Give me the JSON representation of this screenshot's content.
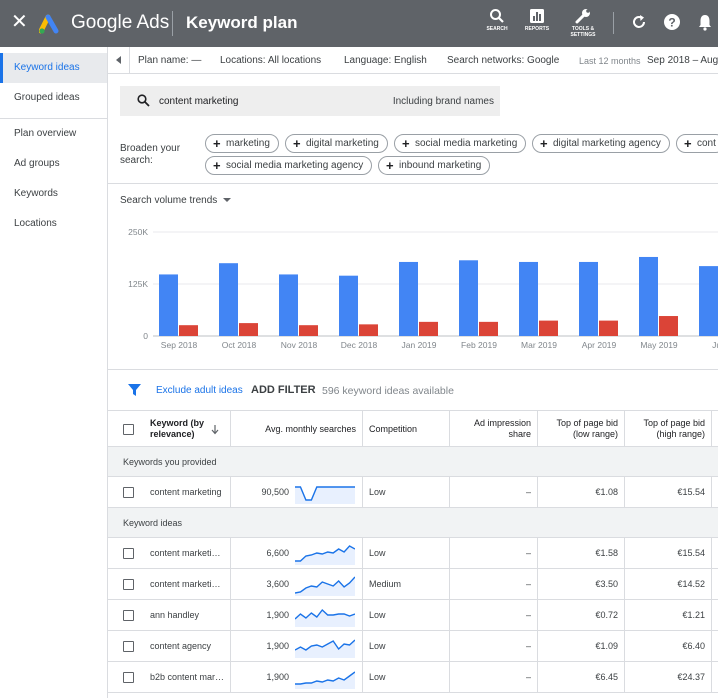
{
  "app": {
    "brand": "Google Ads",
    "page_title": "Keyword plan"
  },
  "header_tools": [
    {
      "label": "SEARCH",
      "icon": "search-icon"
    },
    {
      "label": "REPORTS",
      "icon": "reports-icon"
    },
    {
      "label": "TOOLS & SETTINGS",
      "icon": "wrench-icon"
    }
  ],
  "sidebar": {
    "items": [
      {
        "label": "Keyword ideas",
        "active": true
      },
      {
        "label": "Grouped ideas",
        "active": false
      },
      {
        "label": "Plan overview",
        "active": false
      },
      {
        "label": "Ad groups",
        "active": false
      },
      {
        "label": "Keywords",
        "active": false
      },
      {
        "label": "Locations",
        "active": false
      }
    ]
  },
  "planbar": {
    "plan_name": "Plan name: —",
    "locations": "Locations: All locations",
    "language": "Language: English",
    "networks": "Search networks: Google",
    "range_label": "Last 12 months",
    "range_value": "Sep 2018 – Aug"
  },
  "search": {
    "query": "content marketing",
    "brand_toggle": "Including brand names"
  },
  "broaden": {
    "label": "Broaden your search:",
    "chips_row1": [
      "marketing",
      "digital marketing",
      "social media marketing",
      "digital marketing agency",
      "cont"
    ],
    "chips_row2": [
      "social media marketing agency",
      "inbound marketing"
    ]
  },
  "chart_select": "Search volume trends",
  "chart_data": {
    "type": "bar",
    "categories": [
      "Sep 2018",
      "Oct 2018",
      "Nov 2018",
      "Dec 2018",
      "Jan 2019",
      "Feb 2019",
      "Mar 2019",
      "Apr 2019",
      "May 2019",
      "Jun"
    ],
    "series": [
      {
        "values": [
          148000,
          175000,
          148000,
          145000,
          178000,
          182000,
          178000,
          178000,
          190000,
          168000
        ],
        "color": "#4285f4"
      },
      {
        "values": [
          26000,
          31000,
          26000,
          28000,
          34000,
          34000,
          37000,
          37000,
          48000,
          0
        ],
        "color": "#db4437"
      }
    ],
    "yticks": [
      "0",
      "125K",
      "250K"
    ],
    "ylim": [
      0,
      250000
    ],
    "grid": true
  },
  "filterbar": {
    "exclude": "Exclude adult ideas",
    "add_filter": "ADD FILTER",
    "count": "596 keyword ideas available"
  },
  "table": {
    "headers": {
      "keyword": "Keyword (by relevance)",
      "searches": "Avg. monthly searches",
      "competition": "Competition",
      "impression": "Ad impression share",
      "bid_low": "Top of page bid (low range)",
      "bid_high": "Top of page bid (high range)"
    },
    "section_provided": "Keywords you provided",
    "section_ideas": "Keyword ideas",
    "provided": [
      {
        "keyword": "content marketing",
        "searches": "90,500",
        "competition": "Low",
        "impression": "–",
        "bid_low": "€1.08",
        "bid_high": "€15.54",
        "trend": [
          0.75,
          0.75,
          0.1,
          0.1,
          0.75,
          0.75,
          0.75,
          0.75,
          0.75,
          0.75,
          0.75,
          0.75
        ]
      }
    ],
    "ideas": [
      {
        "keyword": "content marketi…",
        "searches": "6,600",
        "competition": "Low",
        "impression": "–",
        "bid_low": "€1.58",
        "bid_high": "€15.54",
        "trend": [
          0.1,
          0.1,
          0.35,
          0.4,
          0.5,
          0.45,
          0.55,
          0.5,
          0.7,
          0.55,
          0.85,
          0.7
        ]
      },
      {
        "keyword": "content marketi…",
        "searches": "3,600",
        "competition": "Medium",
        "impression": "–",
        "bid_low": "€3.50",
        "bid_high": "€14.52",
        "trend": [
          0.05,
          0.1,
          0.3,
          0.4,
          0.35,
          0.6,
          0.5,
          0.4,
          0.65,
          0.35,
          0.55,
          0.85
        ]
      },
      {
        "keyword": "ann handley",
        "searches": "1,900",
        "competition": "Low",
        "impression": "–",
        "bid_low": "€0.72",
        "bid_high": "€1.21",
        "trend": [
          0.3,
          0.55,
          0.35,
          0.6,
          0.4,
          0.75,
          0.5,
          0.5,
          0.55,
          0.55,
          0.45,
          0.55
        ]
      },
      {
        "keyword": "content agency",
        "searches": "1,900",
        "competition": "Low",
        "impression": "–",
        "bid_low": "€1.09",
        "bid_high": "€6.40",
        "trend": [
          0.3,
          0.45,
          0.3,
          0.5,
          0.55,
          0.45,
          0.6,
          0.75,
          0.35,
          0.6,
          0.55,
          0.8
        ]
      },
      {
        "keyword": "b2b content mar…",
        "searches": "1,900",
        "competition": "Low",
        "impression": "–",
        "bid_low": "€6.45",
        "bid_high": "€24.37",
        "trend": [
          0.15,
          0.15,
          0.2,
          0.2,
          0.3,
          0.25,
          0.35,
          0.3,
          0.45,
          0.35,
          0.55,
          0.75
        ]
      }
    ]
  }
}
